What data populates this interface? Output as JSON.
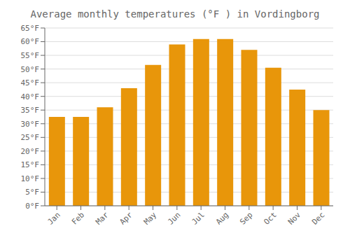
{
  "chart_data": {
    "type": "bar",
    "title": "Average monthly temperatures (°F ) in Vordingborg",
    "categories": [
      "Jan",
      "Feb",
      "Mar",
      "Apr",
      "May",
      "Jun",
      "Jul",
      "Aug",
      "Sep",
      "Oct",
      "Nov",
      "Dec"
    ],
    "values": [
      32.5,
      32.5,
      36,
      43,
      51.5,
      59,
      61,
      61,
      57,
      50.5,
      42.5,
      35
    ],
    "color": "#E8960A",
    "ylim": [
      0,
      65
    ],
    "yticks": [
      {
        "value": 0,
        "label": "0°F"
      },
      {
        "value": 5,
        "label": "5°F"
      },
      {
        "value": 10,
        "label": "10°F"
      },
      {
        "value": 15,
        "label": "15°F"
      },
      {
        "value": 20,
        "label": "20°F"
      },
      {
        "value": 25,
        "label": "25°F"
      },
      {
        "value": 30,
        "label": "30°F"
      },
      {
        "value": 35,
        "label": "35°F"
      },
      {
        "value": 40,
        "label": "40°F"
      },
      {
        "value": 45,
        "label": "45°F"
      },
      {
        "value": 50,
        "label": "50°F"
      },
      {
        "value": 55,
        "label": "55°F"
      },
      {
        "value": 60,
        "label": "60°F"
      },
      {
        "value": 65,
        "label": "65°F"
      }
    ],
    "grid": true
  }
}
